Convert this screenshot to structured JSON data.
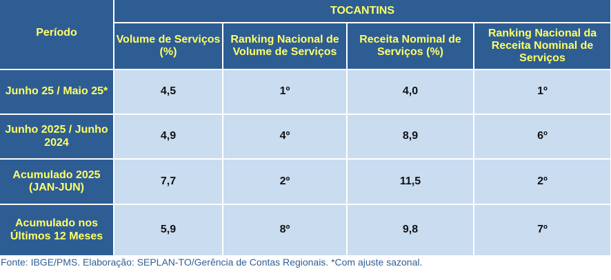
{
  "table": {
    "period_header": "Período",
    "state_header": "TOCANTINS",
    "column_headers": [
      "Volume de Serviços (%)",
      "Ranking Nacional de Volume de Serviços",
      "Receita Nominal de Serviços (%)",
      "Ranking Nacional da Receita Nominal de Serviços"
    ],
    "rows": [
      {
        "period": "Junho 25 / Maio 25*",
        "values": [
          "4,5",
          "1º",
          "4,0",
          "1º"
        ]
      },
      {
        "period": "Junho 2025 / Junho 2024",
        "values": [
          "4,9",
          "4º",
          "8,9",
          "6º"
        ]
      },
      {
        "period": "Acumulado 2025 (JAN-JUN)",
        "values": [
          "7,7",
          "2º",
          "11,5",
          "2º"
        ]
      },
      {
        "period": "Acumulado nos Últimos 12 Meses",
        "values": [
          "5,9",
          "8º",
          "9,8",
          "7º"
        ]
      }
    ]
  },
  "source_note": "Fonte: IBGE/PMS. Elaboração: SEPLAN-TO/Gerência de Contas Regionais. *Com ajuste sazonal.",
  "colors": {
    "header_bg": "#2e5d94",
    "header_text": "#ffff66",
    "cell_bg": "#c9dcf0",
    "cell_text": "#111111",
    "source_text": "#2e5d94"
  }
}
